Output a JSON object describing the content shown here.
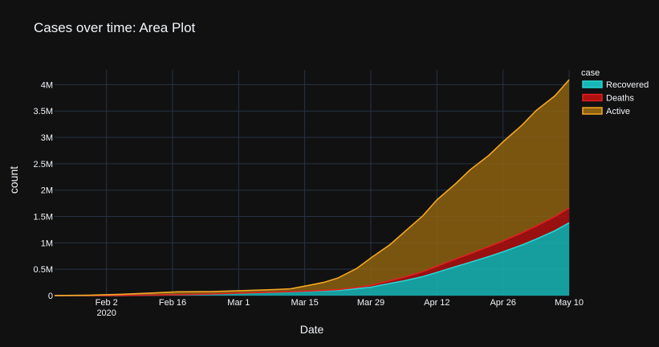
{
  "title": "Cases over time: Area Plot",
  "chart_data": {
    "type": "area",
    "stacked": true,
    "title": "Cases over time: Area Plot",
    "xlabel": "Date",
    "ylabel": "count",
    "legend_title": "case",
    "legend_position": "top-right",
    "grid": true,
    "x_ticks": [
      {
        "date": "2020-02-02",
        "label": "Feb 2",
        "sublabel": "2020"
      },
      {
        "date": "2020-02-16",
        "label": "Feb 16",
        "sublabel": ""
      },
      {
        "date": "2020-03-01",
        "label": "Mar 1",
        "sublabel": ""
      },
      {
        "date": "2020-03-15",
        "label": "Mar 15",
        "sublabel": ""
      },
      {
        "date": "2020-03-29",
        "label": "Mar 29",
        "sublabel": ""
      },
      {
        "date": "2020-04-12",
        "label": "Apr 12",
        "sublabel": ""
      },
      {
        "date": "2020-04-26",
        "label": "Apr 26",
        "sublabel": ""
      },
      {
        "date": "2020-05-10",
        "label": "May 10",
        "sublabel": ""
      }
    ],
    "y_ticks": [
      {
        "value": 0,
        "label": "0"
      },
      {
        "value": 500000,
        "label": "0.5M"
      },
      {
        "value": 1000000,
        "label": "1M"
      },
      {
        "value": 1500000,
        "label": "1.5M"
      },
      {
        "value": 2000000,
        "label": "2M"
      },
      {
        "value": 2500000,
        "label": "2.5M"
      },
      {
        "value": 3000000,
        "label": "3M"
      },
      {
        "value": 3500000,
        "label": "3.5M"
      },
      {
        "value": 4000000,
        "label": "4M"
      }
    ],
    "xlim": [
      "2020-01-22",
      "2020-05-10"
    ],
    "ylim": [
      0,
      4280000
    ],
    "x": [
      "2020-01-22",
      "2020-01-29",
      "2020-02-05",
      "2020-02-12",
      "2020-02-17",
      "2020-02-24",
      "2020-03-02",
      "2020-03-09",
      "2020-03-12",
      "2020-03-15",
      "2020-03-19",
      "2020-03-22",
      "2020-03-26",
      "2020-03-29",
      "2020-04-02",
      "2020-04-05",
      "2020-04-09",
      "2020-04-12",
      "2020-04-16",
      "2020-04-19",
      "2020-04-23",
      "2020-04-26",
      "2020-04-30",
      "2020-05-03",
      "2020-05-07",
      "2020-05-10"
    ],
    "series": [
      {
        "name": "Recovered",
        "color": "#17b6b6",
        "line_color": "#2ad4d4",
        "values": [
          0,
          200,
          1500,
          8000,
          14000,
          27000,
          45000,
          64000,
          70000,
          78000,
          90000,
          98000,
          130000,
          160000,
          230000,
          280000,
          360000,
          440000,
          550000,
          630000,
          740000,
          830000,
          960000,
          1070000,
          1230000,
          1380000
        ]
      },
      {
        "name": "Deaths",
        "color": "#b01010",
        "line_color": "#e02020",
        "values": [
          17,
          170,
          560,
          1300,
          1870,
          2700,
          3100,
          3800,
          4600,
          6500,
          10000,
          14500,
          24000,
          34000,
          52000,
          68000,
          93000,
          115000,
          145000,
          163000,
          190000,
          206000,
          230000,
          247000,
          269000,
          282000
        ]
      },
      {
        "name": "Active",
        "color": "#8c6110",
        "line_color": "#f3a725",
        "values": [
          560,
          5500,
          22000,
          41000,
          55000,
          46000,
          46000,
          48000,
          55000,
          95000,
          150000,
          220000,
          360000,
          520000,
          680000,
          850000,
          1060000,
          1260000,
          1430000,
          1590000,
          1730000,
          1880000,
          2040000,
          2190000,
          2290000,
          2430000
        ]
      }
    ]
  }
}
